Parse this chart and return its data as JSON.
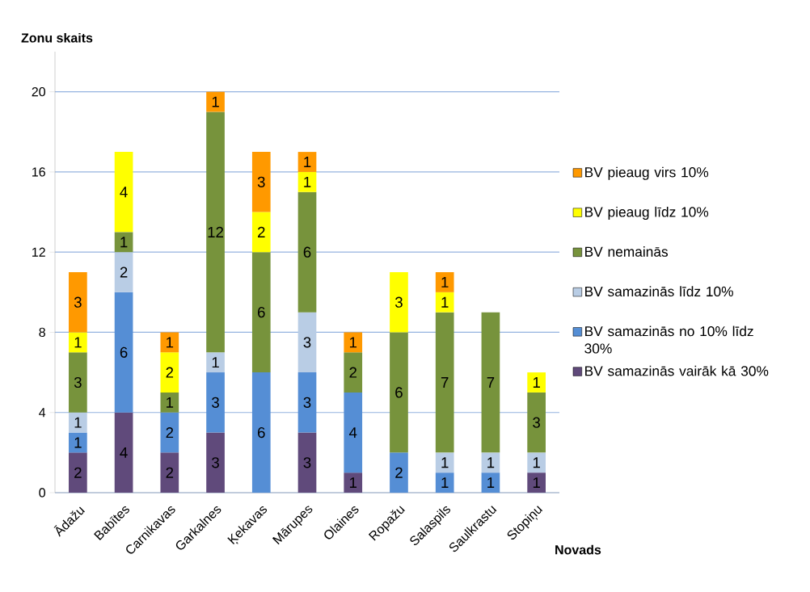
{
  "chart_data": {
    "type": "bar",
    "stacked": true,
    "xlabel": "Novads",
    "ylabel": "Zonu skaits",
    "categories": [
      "Ādažu",
      "Babītes",
      "Carnikavas",
      "Garkalnes",
      "Ķekavas",
      "Mārupes",
      "Olaines",
      "Ropažu",
      "Salaspils",
      "Saulkrastu",
      "Stopiņu"
    ],
    "series": [
      {
        "name": "BV samazinās vairāk kā 30%",
        "color": "#604a7b",
        "values": [
          2,
          4,
          2,
          3,
          null,
          3,
          1,
          null,
          null,
          null,
          1
        ]
      },
      {
        "name": "BV samazinās no 10% līdz 30%",
        "color": "#558ed5",
        "values": [
          1,
          6,
          2,
          3,
          6,
          3,
          4,
          2,
          1,
          1,
          null
        ]
      },
      {
        "name": "BV samazinās līdz 10%",
        "color": "#b9cde5",
        "values": [
          1,
          2,
          null,
          1,
          null,
          3,
          null,
          null,
          1,
          1,
          1
        ]
      },
      {
        "name": "BV nemainās",
        "color": "#77933c",
        "values": [
          3,
          1,
          1,
          12,
          6,
          6,
          2,
          6,
          7,
          7,
          3
        ]
      },
      {
        "name": "BV pieaug  līdz 10%",
        "color": "#ffff00",
        "values": [
          1,
          4,
          2,
          null,
          2,
          1,
          null,
          3,
          1,
          null,
          1
        ]
      },
      {
        "name": "BV pieaug  virs 10%",
        "color": "#ff9900",
        "values": [
          3,
          null,
          1,
          1,
          3,
          1,
          1,
          null,
          1,
          null,
          null
        ]
      }
    ],
    "ylim": [
      0,
      22
    ],
    "yticks": [
      0,
      4,
      8,
      12,
      16,
      20
    ],
    "grid": "y",
    "legend": "right",
    "data_labels": true
  }
}
